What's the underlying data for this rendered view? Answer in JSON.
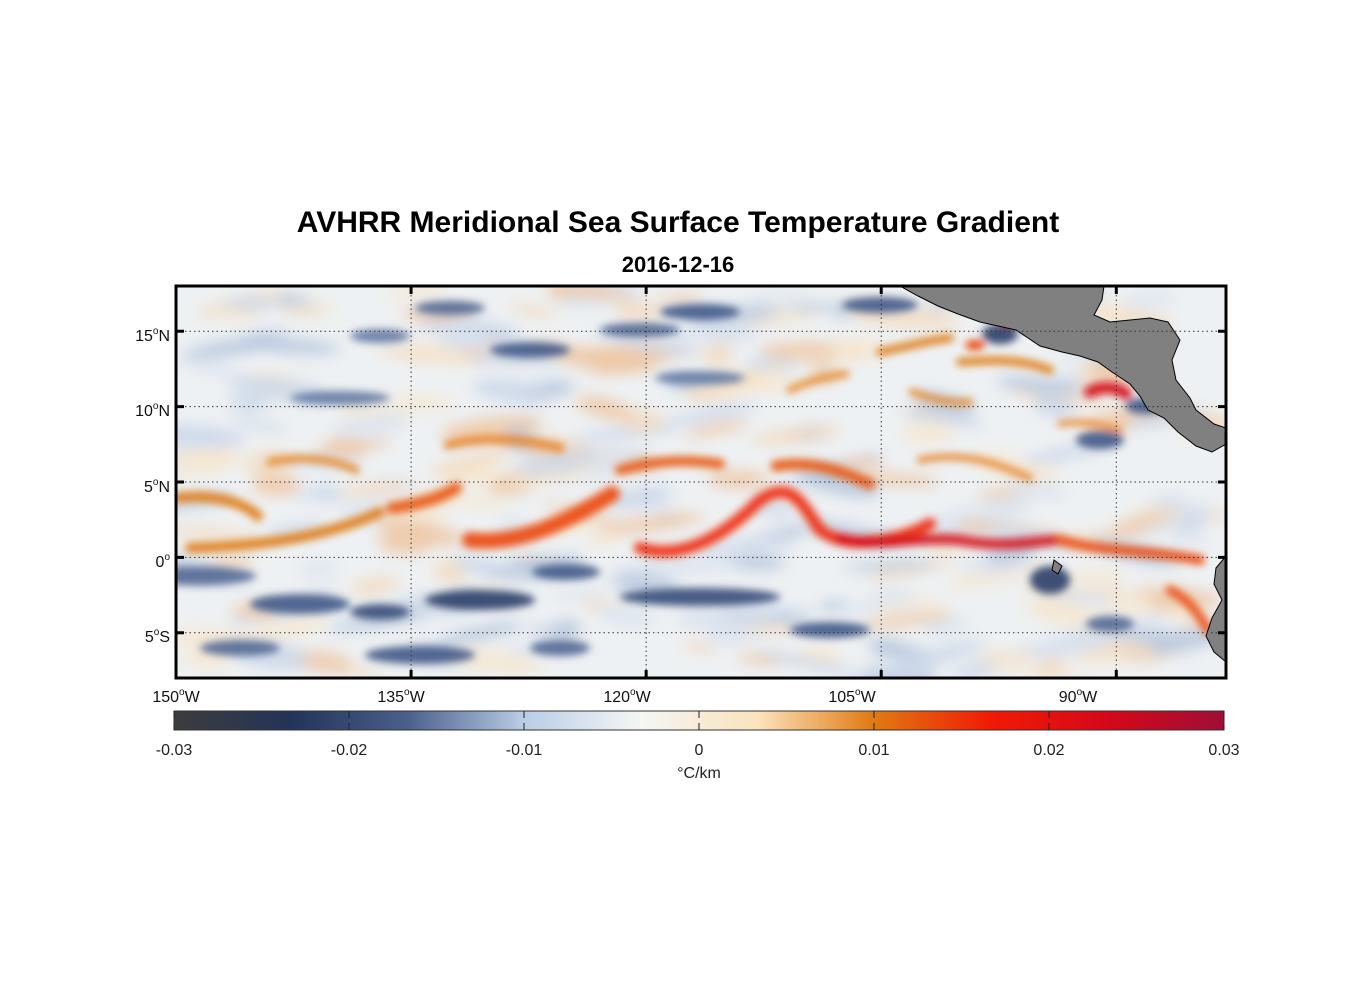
{
  "title": "AVHRR Meridional Sea Surface Temperature Gradient",
  "subtitle": "2016-12-16",
  "map": {
    "lon_range": [
      -150,
      -83
    ],
    "lat_range": [
      -8,
      18
    ],
    "lat_ticks": [
      {
        "value": 15,
        "num": "15",
        "hemi": "N"
      },
      {
        "value": 10,
        "num": "10",
        "hemi": "N"
      },
      {
        "value": 5,
        "num": "5",
        "hemi": "N"
      },
      {
        "value": 0,
        "num": "0",
        "hemi": ""
      },
      {
        "value": -5,
        "num": "5",
        "hemi": "S"
      }
    ],
    "lon_ticks": [
      {
        "value": -150,
        "num": "150",
        "hemi": "W"
      },
      {
        "value": -135,
        "num": "135",
        "hemi": "W"
      },
      {
        "value": -120,
        "num": "120",
        "hemi": "W"
      },
      {
        "value": -105,
        "num": "105",
        "hemi": "W"
      },
      {
        "value": -90,
        "num": "90",
        "hemi": "W"
      }
    ],
    "land_color": "#808080",
    "grid": "dotted"
  },
  "colorbar": {
    "min": -0.03,
    "max": 0.03,
    "ticks": [
      "-0.03",
      "-0.02",
      "-0.01",
      "0",
      "0.01",
      "0.02",
      "0.03"
    ],
    "unit": "°C/km",
    "colors": [
      "#3c3c3c",
      "#233459",
      "#4a5f8c",
      "#b9cde6",
      "#f4f6f4",
      "#fbe3bd",
      "#e07a12",
      "#f21a05",
      "#d5081a",
      "#a00e36"
    ]
  }
}
